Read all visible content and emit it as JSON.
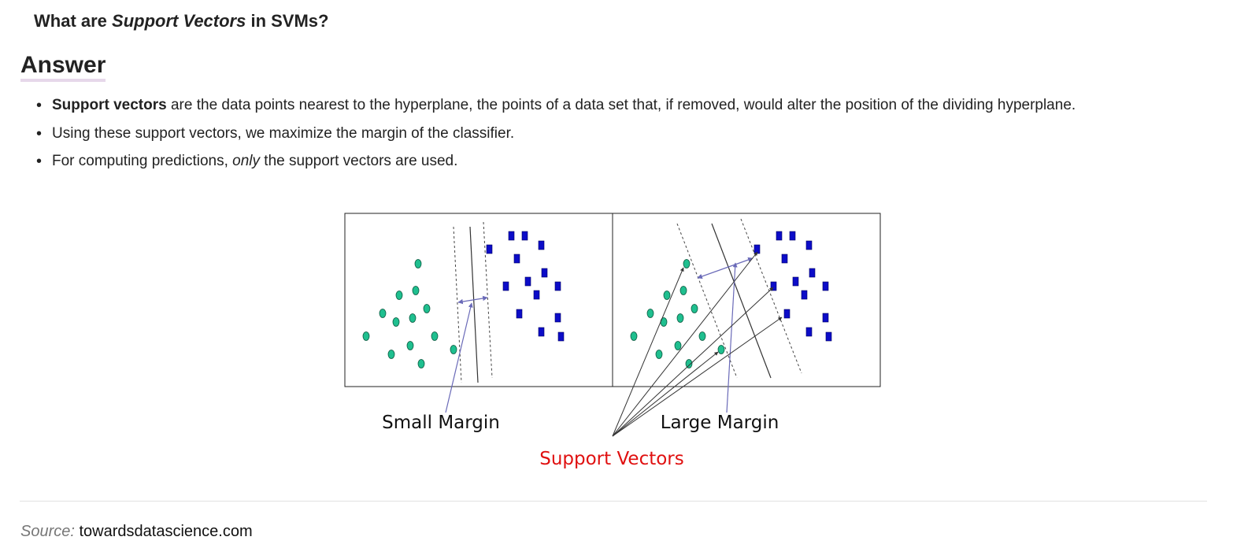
{
  "question": {
    "prefix": "What are ",
    "emphasis": "Support Vectors",
    "suffix": " in SVMs?"
  },
  "answer": {
    "heading": "Answer",
    "bullets": [
      {
        "bold": "Support vectors",
        "text": " are the data points nearest to the hyperplane, the points of a data set that, if removed, would alter the position of the dividing hyperplane."
      },
      {
        "text": "Using these support vectors, we maximize the margin of the classifier."
      },
      {
        "prefix": "For computing predictions, ",
        "italic": "only",
        "suffix": " the support vectors are used."
      }
    ]
  },
  "figure": {
    "small_margin_label": "Small Margin",
    "large_margin_label": "Large Margin",
    "support_vectors_label": "Support Vectors",
    "colors": {
      "circle_class": "#1fbf8f",
      "square_class": "#0c0cc8",
      "arrow": "#6a6ab8",
      "support_label": "#e01010"
    }
  },
  "source": {
    "label": "Source:",
    "value": "towardsdatascience.com"
  }
}
